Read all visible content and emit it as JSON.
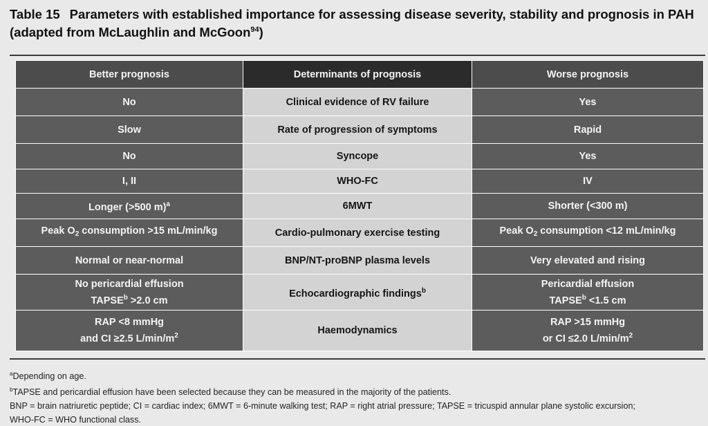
{
  "caption": {
    "number": "Table 15",
    "title": "Parameters with established importance for assessing disease severity, stability and prognosis in PAH (adapted from McLaughlin and McGoon",
    "ref": "94",
    "close": ")"
  },
  "table": {
    "headers": [
      "Better prognosis",
      "Determinants of prognosis",
      "Worse prognosis"
    ],
    "rows": [
      {
        "better": "No",
        "determinant": "Clinical evidence of RV failure",
        "worse": "Yes"
      },
      {
        "better": "Slow",
        "determinant": "Rate of progression of symptoms",
        "worse": "Rapid"
      },
      {
        "better": "No",
        "determinant": "Syncope",
        "worse": "Yes"
      },
      {
        "better": "I, II",
        "determinant": "WHO-FC",
        "worse": "IV"
      },
      {
        "better": "Longer (>500 m)",
        "better_sup": "a",
        "determinant": "6MWT",
        "worse": "Shorter (<300 m)"
      },
      {
        "better_a": "Peak O",
        "better_sub": "2",
        "better_b": " consumption >15 mL/min/kg",
        "determinant": "Cardio-pulmonary exercise testing",
        "worse_a": "Peak O",
        "worse_sub": "2",
        "worse_b": " consumption <12 mL/min/kg"
      },
      {
        "better": "Normal or near-normal",
        "determinant": "BNP/NT-proBNP plasma levels",
        "worse": "Very elevated and rising"
      },
      {
        "better_l1": "No pericardial effusion",
        "better_l2a": "TAPSE",
        "better_l2sup": "b",
        "better_l2b": " >2.0 cm",
        "determinant": "Echocardiographic findings",
        "determinant_sup": "b",
        "worse_l1": "Pericardial effusion",
        "worse_l2a": "TAPSE",
        "worse_l2sup": "b",
        "worse_l2b": " <1.5 cm"
      },
      {
        "better_l1": "RAP <8 mmHg",
        "better_l2a": "and CI ≥2.5 L/min/m",
        "better_l2sup": "2",
        "determinant": "Haemodynamics",
        "worse_l1": "RAP >15 mmHg",
        "worse_l2a": "or CI ≤2.0 L/min/m",
        "worse_l2sup": "2"
      }
    ]
  },
  "footnotes": {
    "a_mark": "a",
    "a_text": "Depending on age.",
    "b_mark": "b",
    "b_text": "TAPSE and pericardial effusion have been selected because they can be measured in the majority of the patients.",
    "abbrev_1": "BNP = brain natriuretic peptide; CI = cardiac index; 6MWT = 6-minute walking test; RAP = right atrial pressure; TAPSE = tricuspid annular plane systolic excursion;",
    "abbrev_2": "WHO-FC = WHO functional class."
  }
}
